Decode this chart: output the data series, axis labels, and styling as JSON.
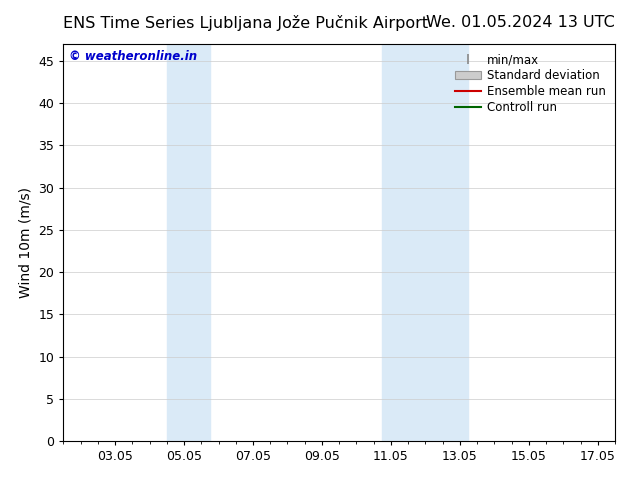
{
  "title": "ENS Time Series Ljubljana Jože Pučnik Airport",
  "title_right": "We. 01.05.2024 13 UTC",
  "ylabel": "Wind 10m (m/s)",
  "watermark": "© weatheronline.in",
  "watermark_color": "#0000cc",
  "xlim": [
    1.5,
    17.5
  ],
  "ylim": [
    0,
    47
  ],
  "yticks": [
    0,
    5,
    10,
    15,
    20,
    25,
    30,
    35,
    40,
    45
  ],
  "xtick_labels": [
    "03.05",
    "05.05",
    "07.05",
    "09.05",
    "11.05",
    "13.05",
    "15.05",
    "17.05"
  ],
  "xtick_positions": [
    3,
    5,
    7,
    9,
    11,
    13,
    15,
    17
  ],
  "shaded_regions": [
    {
      "xmin": 4.5,
      "xmax": 5.75,
      "color": "#daeaf7"
    },
    {
      "xmin": 10.75,
      "xmax": 13.25,
      "color": "#daeaf7"
    }
  ],
  "bg_color": "#ffffff",
  "plot_bg_color": "#ffffff",
  "title_fontsize": 11.5,
  "label_fontsize": 10,
  "tick_fontsize": 9,
  "watermark_fontsize": 8.5,
  "legend_fontsize": 8.5
}
